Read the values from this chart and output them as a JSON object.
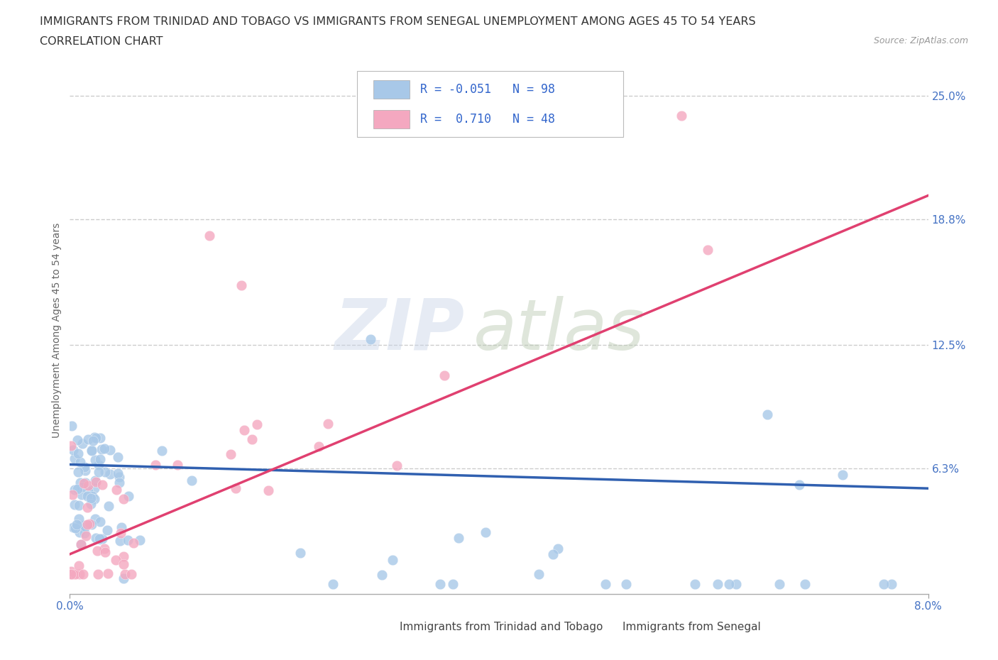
{
  "title_line1": "IMMIGRANTS FROM TRINIDAD AND TOBAGO VS IMMIGRANTS FROM SENEGAL UNEMPLOYMENT AMONG AGES 45 TO 54 YEARS",
  "title_line2": "CORRELATION CHART",
  "source_text": "Source: ZipAtlas.com",
  "ylabel": "Unemployment Among Ages 45 to 54 years",
  "xlim": [
    0.0,
    0.08
  ],
  "ylim": [
    0.0,
    0.265
  ],
  "ytick_values": [
    0.063,
    0.125,
    0.188,
    0.25
  ],
  "ytick_labels": [
    "6.3%",
    "12.5%",
    "18.8%",
    "25.0%"
  ],
  "grid_color": "#cccccc",
  "color_tt": "#a8c8e8",
  "color_sn": "#f4a8c0",
  "line_color_tt": "#3060b0",
  "line_color_sn": "#e04070",
  "line_color_sn_dash": "#e04070",
  "title_fontsize": 11.5,
  "axis_label_fontsize": 10,
  "tick_fontsize": 11,
  "legend_fontsize": 12,
  "tt_intercept": 0.065,
  "tt_slope": -0.15,
  "sn_intercept": 0.02,
  "sn_slope": 2.25,
  "label_tt": "Immigrants from Trinidad and Tobago",
  "label_sn": "Immigrants from Senegal",
  "legend_text_tt": "R = -0.051  N = 98",
  "legend_text_sn": "R =  0.710  N = 48"
}
